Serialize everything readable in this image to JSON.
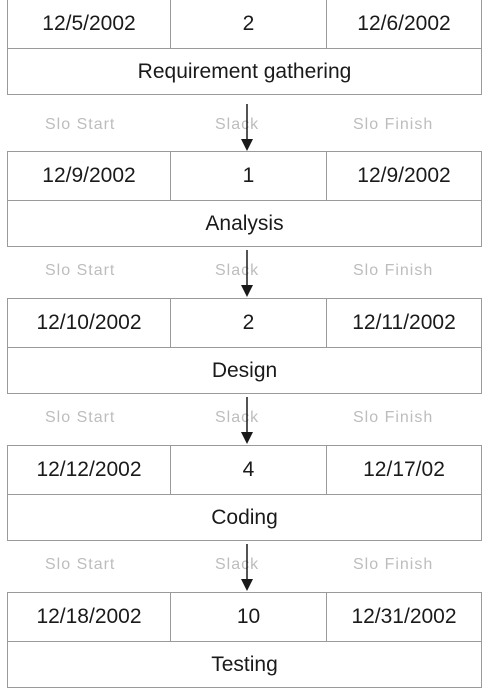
{
  "legend": {
    "start_label": "Slo Start",
    "slack_label": "Slack",
    "finish_label": "Slo Finish"
  },
  "tasks": [
    {
      "start": "12/5/2002",
      "duration": "2",
      "finish": "12/6/2002",
      "name": "Requirement gathering"
    },
    {
      "start": "12/9/2002",
      "duration": "1",
      "finish": "12/9/2002",
      "name": "Analysis"
    },
    {
      "start": "12/10/2002",
      "duration": "2",
      "finish": "12/11/2002",
      "name": "Design"
    },
    {
      "start": "12/12/2002",
      "duration": "4",
      "finish": "12/17/02",
      "name": "Coding"
    },
    {
      "start": "12/18/2002",
      "duration": "10",
      "finish": "12/31/2002",
      "name": "Testing"
    }
  ],
  "colors": {
    "border": "#9a9a9a",
    "legend_text": "#bdbdbd",
    "accent": "#4caf7d",
    "arrow": "#1a1a1a"
  }
}
